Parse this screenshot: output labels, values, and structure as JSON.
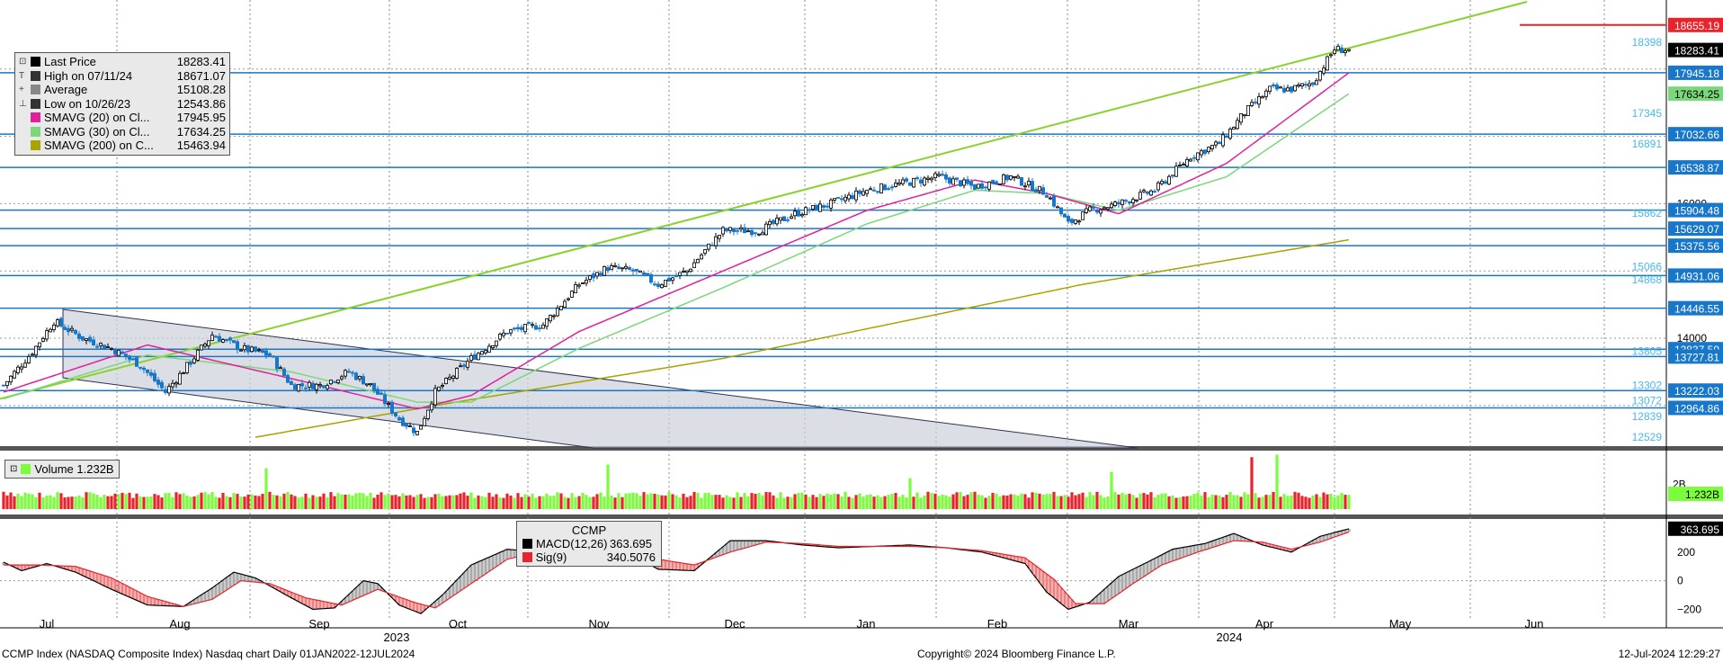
{
  "chart_data": {
    "type": "candlestick",
    "title": "CCMP Index (NASDAQ Composite Index) Nasdaq chart  Daily 01JAN2022-12JUL2024",
    "price_ylim": [
      12450,
      19000
    ],
    "price_ticks": [
      14000,
      16000
    ],
    "x_labels": [
      "Jul",
      "Aug",
      "Sep",
      "Oct",
      "Nov",
      "Dec",
      "Jan",
      "Feb",
      "Mar",
      "Apr",
      "May",
      "Jun"
    ],
    "x_years": [
      "2023",
      "2024"
    ],
    "series": [
      {
        "name": "Last Price",
        "value": "18283.41",
        "color": "#000000"
      },
      {
        "name": "High on 07/11/24",
        "value": "18671.07",
        "color": "#333333"
      },
      {
        "name": "Average",
        "value": "15108.28",
        "color": "#888888"
      },
      {
        "name": "Low on 10/26/23",
        "value": "12543.86",
        "color": "#333333"
      },
      {
        "name": "SMAVG (20)  on Cl...",
        "value": "17945.95",
        "color": "#e0229a"
      },
      {
        "name": "SMAVG (30)  on Cl...",
        "value": "17634.25",
        "color": "#7cd67c"
      },
      {
        "name": "SMAVG (200)  on C...",
        "value": "15463.94",
        "color": "#a7a400"
      }
    ],
    "close_anchors": [
      [
        0,
        13300
      ],
      [
        8,
        13800
      ],
      [
        14,
        14250
      ],
      [
        22,
        14000
      ],
      [
        30,
        13850
      ],
      [
        38,
        13600
      ],
      [
        45,
        13200
      ],
      [
        52,
        13650
      ],
      [
        58,
        14050
      ],
      [
        66,
        13850
      ],
      [
        74,
        13750
      ],
      [
        80,
        13300
      ],
      [
        88,
        13300
      ],
      [
        96,
        13500
      ],
      [
        102,
        13300
      ],
      [
        110,
        12800
      ],
      [
        115,
        12600
      ],
      [
        120,
        13200
      ],
      [
        130,
        13700
      ],
      [
        140,
        14100
      ],
      [
        150,
        14200
      ],
      [
        160,
        14800
      ],
      [
        168,
        15050
      ],
      [
        175,
        15000
      ],
      [
        182,
        14800
      ],
      [
        190,
        15000
      ],
      [
        200,
        15600
      ],
      [
        210,
        15600
      ],
      [
        220,
        15850
      ],
      [
        230,
        16000
      ],
      [
        240,
        16200
      ],
      [
        250,
        16300
      ],
      [
        260,
        16400
      ],
      [
        270,
        16250
      ],
      [
        280,
        16400
      ],
      [
        290,
        16150
      ],
      [
        296,
        15700
      ],
      [
        302,
        15900
      ],
      [
        310,
        16000
      ],
      [
        320,
        16200
      ],
      [
        330,
        16700
      ],
      [
        338,
        16900
      ],
      [
        345,
        17350
      ],
      [
        352,
        17700
      ],
      [
        358,
        17700
      ],
      [
        364,
        17800
      ],
      [
        370,
        18300
      ],
      [
        374,
        18283
      ]
    ],
    "sma20_anchors": [
      [
        0,
        13200
      ],
      [
        40,
        13900
      ],
      [
        80,
        13400
      ],
      [
        115,
        12950
      ],
      [
        130,
        13150
      ],
      [
        160,
        14100
      ],
      [
        200,
        15000
      ],
      [
        240,
        15900
      ],
      [
        270,
        16350
      ],
      [
        290,
        16150
      ],
      [
        310,
        15850
      ],
      [
        340,
        16600
      ],
      [
        374,
        17945
      ]
    ],
    "sma30_anchors": [
      [
        0,
        13100
      ],
      [
        40,
        13750
      ],
      [
        80,
        13500
      ],
      [
        115,
        13050
      ],
      [
        130,
        13050
      ],
      [
        160,
        13850
      ],
      [
        200,
        14750
      ],
      [
        240,
        15700
      ],
      [
        270,
        16200
      ],
      [
        290,
        16150
      ],
      [
        310,
        15900
      ],
      [
        340,
        16400
      ],
      [
        374,
        17634
      ]
    ],
    "sma200_anchors": [
      [
        70,
        12529
      ],
      [
        120,
        13000
      ],
      [
        200,
        13700
      ],
      [
        300,
        14800
      ],
      [
        374,
        15463
      ]
    ],
    "channel_upper": [
      [
        14200,
        0
      ],
      [
        13302,
        134
      ]
    ],
    "channel_lower": [
      [
        13600,
        0
      ],
      [
        12450,
        134
      ]
    ],
    "trend_line": [
      [
        13100,
        0
      ],
      [
        19000,
        339
      ]
    ],
    "h_levels": [
      {
        "value": 17945.18,
        "label": "17945.18",
        "shade": "bold"
      },
      {
        "value": 17032.66,
        "label": "17032.66",
        "shade": "bold"
      },
      {
        "value": 16538.87,
        "label": "16538.87",
        "shade": "bold"
      },
      {
        "value": 15904.48,
        "label": "15904.48",
        "shade": "bold"
      },
      {
        "value": 15629.07,
        "label": "15629.07",
        "shade": "bold"
      },
      {
        "value": 15375.56,
        "label": "15375.56",
        "shade": "bold"
      },
      {
        "value": 14931.06,
        "label": "14931.06",
        "shade": "bold"
      },
      {
        "value": 14446.55,
        "label": "14446.55",
        "shade": "bold"
      },
      {
        "value": 13837.59,
        "label": "13837.59",
        "shade": "bold"
      },
      {
        "value": 13727.81,
        "label": "13727.81",
        "shade": "bold"
      },
      {
        "value": 13222.03,
        "label": "13222.03",
        "shade": "bold"
      },
      {
        "value": 12964.86,
        "label": "12964.86",
        "shade": "bold"
      }
    ],
    "fib_labels": [
      {
        "value": 18398,
        "label": "18398"
      },
      {
        "value": 17345,
        "label": "17345"
      },
      {
        "value": 16891,
        "label": "16891"
      },
      {
        "value": 15862,
        "label": "15862"
      },
      {
        "value": 15066,
        "label": "15066"
      },
      {
        "value": 14868,
        "label": "14868"
      },
      {
        "value": 13805,
        "label": "13805"
      },
      {
        "value": 13302,
        "label": "13302"
      },
      {
        "value": 13072,
        "label": "13072"
      },
      {
        "value": 12839,
        "label": "12839"
      },
      {
        "value": 12529,
        "label": "12529"
      }
    ],
    "price_tags": [
      {
        "value": 18655.19,
        "label": "18655.19",
        "bg": "#e8232b",
        "fg": "#ffffff"
      },
      {
        "value": 18283.41,
        "label": "18283.41",
        "bg": "#000000",
        "fg": "#ffffff"
      },
      {
        "value": 17634.25,
        "label": "17634.25",
        "bg": "#7cd67c",
        "fg": "#000000"
      }
    ],
    "volume": {
      "label": "Volume",
      "value": "1.232B",
      "ylim": [
        0,
        3.2
      ],
      "ticks": [
        {
          "value": 2,
          "label": "2B"
        }
      ],
      "spikes": [
        [
          73,
          3.3
        ],
        [
          168,
          3.6
        ],
        [
          252,
          2.5
        ],
        [
          308,
          3.0
        ],
        [
          347,
          4.2
        ],
        [
          354,
          4.4
        ]
      ]
    },
    "macd": {
      "title": "CCMP",
      "ylim": [
        -260,
        400
      ],
      "ticks": [
        200,
        0,
        -200
      ],
      "series": [
        {
          "name": "MACD(12,26)",
          "value": "363.695",
          "color": "#000000"
        },
        {
          "name": "Sig(9)",
          "value": "340.5076",
          "color": "#e8232b"
        }
      ],
      "macd_anchors": [
        [
          0,
          130
        ],
        [
          5,
          70
        ],
        [
          12,
          120
        ],
        [
          20,
          60
        ],
        [
          30,
          -60
        ],
        [
          40,
          -170
        ],
        [
          50,
          -180
        ],
        [
          58,
          -50
        ],
        [
          64,
          60
        ],
        [
          70,
          20
        ],
        [
          80,
          -120
        ],
        [
          86,
          -200
        ],
        [
          92,
          -190
        ],
        [
          100,
          0
        ],
        [
          104,
          -20
        ],
        [
          110,
          -170
        ],
        [
          116,
          -230
        ],
        [
          122,
          -100
        ],
        [
          130,
          110
        ],
        [
          140,
          220
        ],
        [
          150,
          200
        ],
        [
          160,
          190
        ],
        [
          172,
          220
        ],
        [
          182,
          80
        ],
        [
          192,
          70
        ],
        [
          202,
          280
        ],
        [
          212,
          280
        ],
        [
          222,
          250
        ],
        [
          232,
          230
        ],
        [
          242,
          240
        ],
        [
          252,
          250
        ],
        [
          262,
          230
        ],
        [
          272,
          200
        ],
        [
          284,
          120
        ],
        [
          290,
          -80
        ],
        [
          296,
          -200
        ],
        [
          302,
          -150
        ],
        [
          310,
          30
        ],
        [
          318,
          130
        ],
        [
          325,
          220
        ],
        [
          334,
          260
        ],
        [
          342,
          330
        ],
        [
          350,
          250
        ],
        [
          358,
          200
        ],
        [
          366,
          310
        ],
        [
          374,
          363
        ]
      ],
      "sig_anchors": [
        [
          0,
          110
        ],
        [
          10,
          110
        ],
        [
          20,
          100
        ],
        [
          30,
          20
        ],
        [
          40,
          -110
        ],
        [
          50,
          -180
        ],
        [
          58,
          -130
        ],
        [
          66,
          0
        ],
        [
          74,
          -20
        ],
        [
          84,
          -120
        ],
        [
          94,
          -170
        ],
        [
          104,
          -60
        ],
        [
          114,
          -150
        ],
        [
          120,
          -190
        ],
        [
          130,
          -20
        ],
        [
          140,
          150
        ],
        [
          150,
          210
        ],
        [
          160,
          200
        ],
        [
          172,
          210
        ],
        [
          182,
          150
        ],
        [
          192,
          110
        ],
        [
          202,
          200
        ],
        [
          212,
          270
        ],
        [
          222,
          260
        ],
        [
          232,
          240
        ],
        [
          242,
          240
        ],
        [
          252,
          240
        ],
        [
          262,
          230
        ],
        [
          272,
          210
        ],
        [
          284,
          160
        ],
        [
          292,
          10
        ],
        [
          298,
          -160
        ],
        [
          306,
          -160
        ],
        [
          314,
          -20
        ],
        [
          322,
          110
        ],
        [
          332,
          200
        ],
        [
          342,
          280
        ],
        [
          350,
          270
        ],
        [
          358,
          220
        ],
        [
          366,
          270
        ],
        [
          374,
          340
        ]
      ]
    },
    "footer_left": "CCMP Index (NASDAQ Composite Index) Nasdaq chart  Daily 01JAN2022-12JUL2024",
    "footer_center": "Copyright© 2024 Bloomberg Finance L.P.",
    "footer_right": "12-Jul-2024 12:29:27"
  }
}
